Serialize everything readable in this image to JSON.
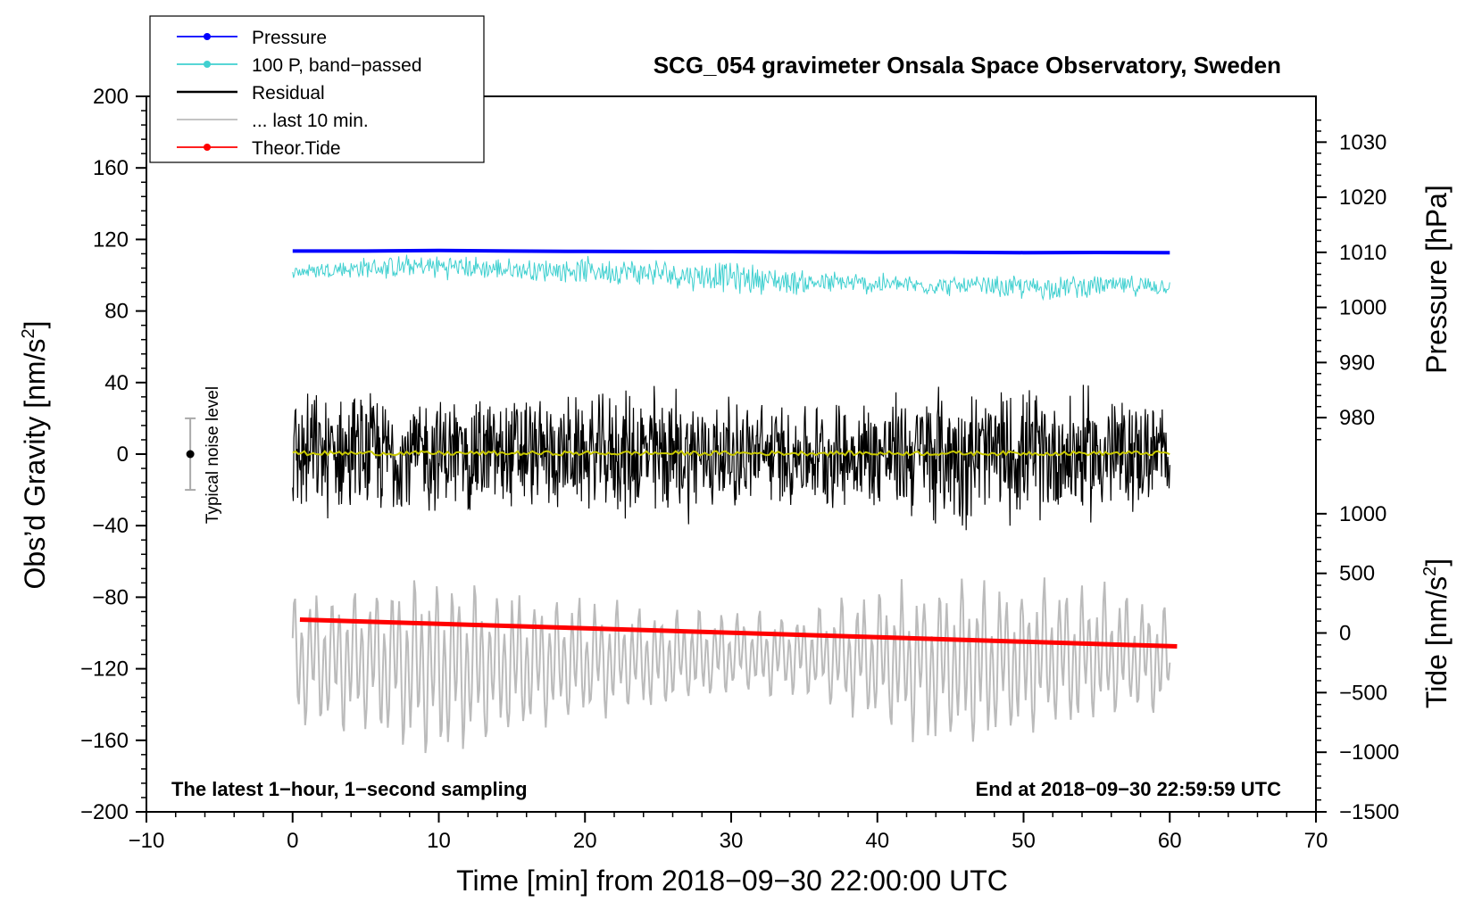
{
  "chart_data": {
    "type": "line",
    "title": "SCG_054 gravimeter Onsala Space Observatory, Sweden",
    "xlabel": "Time [min] from 2018−09−30 22:00:00 UTC",
    "ylabel_left": "Obs’d Gravity [nm/s",
    "ylabel_left_sup": "2",
    "ylabel_left_end": "]",
    "ylabel_pressure": "Pressure [hPa]",
    "ylabel_tide": "Tide [nm/s",
    "ylabel_tide_sup": "2",
    "ylabel_tide_end": "]",
    "xlim": [
      -10,
      70
    ],
    "ylim": [
      -200,
      200
    ],
    "x_ticks": [
      -10,
      0,
      10,
      20,
      30,
      40,
      50,
      60,
      70
    ],
    "x_tick_labels": [
      "−10",
      "0",
      "10",
      "20",
      "30",
      "40",
      "50",
      "60",
      "70"
    ],
    "y_ticks": [
      200,
      160,
      120,
      80,
      40,
      0,
      -40,
      -80,
      -120,
      -160,
      -200
    ],
    "y_tick_labels": [
      "200",
      "160",
      "120",
      "80",
      "40",
      "0",
      "−40",
      "−80",
      "−120",
      "−160",
      "−200"
    ],
    "pressure_axis": {
      "ticks": [
        1030,
        1020,
        1010,
        1000,
        990,
        980
      ],
      "tick_labels": [
        "1030",
        "1020",
        "1010",
        "1000",
        "990",
        "980"
      ],
      "gravity_at_1000": 82,
      "gravity_per_hPa": 3.08
    },
    "tide_axis": {
      "ticks": [
        1000,
        500,
        0,
        -500,
        -1000,
        -1500
      ],
      "tick_labels": [
        "1000",
        "500",
        "0",
        "−500",
        "−1000",
        "−1500"
      ],
      "gravity_at_0": -100,
      "gravity_per_unit": 0.06667
    },
    "legend": [
      {
        "label": "Pressure",
        "color": "#0000ff",
        "marker": true
      },
      {
        "label": "100 P, band−passed",
        "color": "#40d0d0",
        "marker": true
      },
      {
        "label": "Residual",
        "color": "#000000",
        "marker": false
      },
      {
        "label": "... last 10 min.",
        "color": "#bbbbbb",
        "marker": false
      },
      {
        "label": "Theor.Tide",
        "color": "#ff0000",
        "marker": true
      }
    ],
    "noise_marker": {
      "label": "Typical noise level",
      "x": -7,
      "y": 0,
      "low": -20,
      "high": 20
    },
    "footer_left": "The latest 1−hour, 1−second sampling",
    "footer_right": "End at 2018−09−30 22:59:59 UTC",
    "series": [
      {
        "name": "Pressure",
        "color": "#0000ff",
        "x": [
          0,
          5,
          10,
          15,
          20,
          25,
          30,
          35,
          40,
          45,
          50,
          55,
          60
        ],
        "y": [
          113.5,
          113.5,
          113.8,
          113.5,
          113.3,
          113.2,
          113.2,
          113.0,
          112.8,
          112.8,
          112.6,
          112.7,
          112.6
        ]
      },
      {
        "name": "100 P, band−passed",
        "color": "#40d0d0",
        "x": [
          0,
          5,
          10,
          15,
          20,
          25,
          30,
          35,
          40,
          45,
          50,
          55,
          60
        ],
        "y": [
          102,
          104,
          105,
          103,
          103,
          101,
          99,
          96,
          95,
          94,
          93,
          94,
          94
        ],
        "amplitude": [
          5,
          7,
          8,
          7,
          8,
          9,
          10,
          8,
          7,
          6,
          8,
          7,
          6
        ]
      },
      {
        "name": "Residual",
        "color": "#000000",
        "x": [
          0,
          5,
          10,
          15,
          20,
          25,
          30,
          35,
          40,
          45,
          50,
          55,
          60
        ],
        "y": [
          0,
          0,
          0,
          0,
          0,
          0,
          0,
          0,
          0,
          0,
          0,
          0,
          0
        ],
        "amplitude": [
          38,
          38,
          36,
          38,
          34,
          45,
          34,
          32,
          36,
          45,
          40,
          42,
          30
        ]
      },
      {
        "name": "Residual smoothed",
        "color": "#c8c800",
        "x": [
          0,
          60
        ],
        "y": [
          0.5,
          0.5
        ]
      },
      {
        "name": "... last 10 min.",
        "color": "#bbbbbb",
        "x": [
          0,
          5,
          10,
          15,
          20,
          25,
          30,
          35,
          40,
          45,
          50,
          55,
          60
        ],
        "y": [
          -115,
          -115,
          -120,
          -118,
          -115,
          -115,
          -112,
          -112,
          -115,
          -118,
          -115,
          -112,
          -115
        ],
        "amplitude": [
          40,
          45,
          55,
          45,
          35,
          30,
          25,
          25,
          40,
          50,
          45,
          40,
          30
        ]
      },
      {
        "name": "Theor.Tide",
        "color": "#ff0000",
        "x": [
          0.5,
          60.5
        ],
        "y": [
          -92.5,
          -107.5
        ]
      }
    ]
  }
}
